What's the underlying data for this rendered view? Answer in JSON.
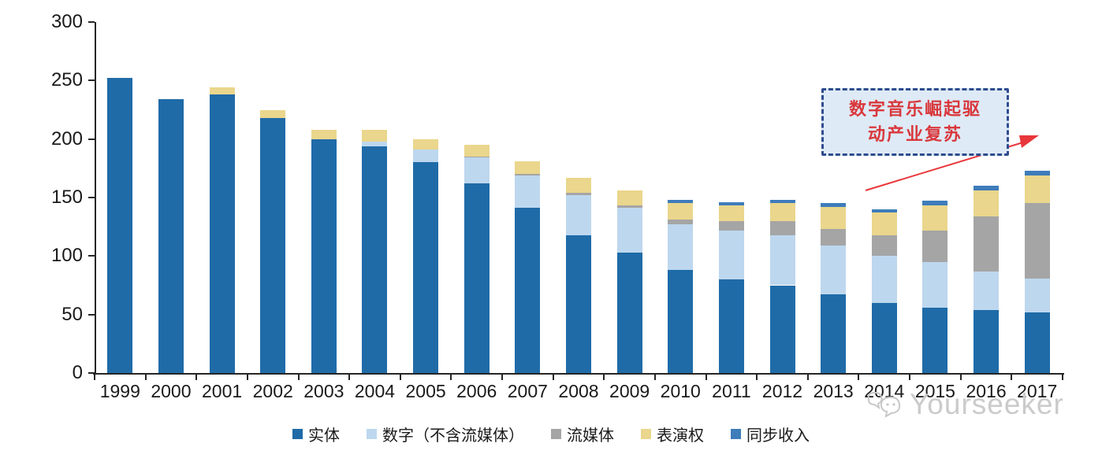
{
  "chart_data": {
    "type": "bar",
    "stacked": true,
    "title": "",
    "xlabel": "",
    "ylabel": "",
    "categories": [
      "1999",
      "2000",
      "2001",
      "2002",
      "2003",
      "2004",
      "2005",
      "2006",
      "2007",
      "2008",
      "2009",
      "2010",
      "2011",
      "2012",
      "2013",
      "2014",
      "2015",
      "2016",
      "2017"
    ],
    "series": [
      {
        "name": "实体",
        "color": "#1F6BA8",
        "values": [
          252,
          234,
          238,
          218,
          200,
          194,
          180,
          162,
          141,
          118,
          103,
          88,
          80,
          75,
          67,
          60,
          56,
          54,
          52
        ]
      },
      {
        "name": "数字（不含流媒体）",
        "color": "#BDD7EE",
        "values": [
          0,
          0,
          0,
          0,
          0,
          4,
          11,
          22,
          28,
          34,
          38,
          39,
          42,
          43,
          42,
          40,
          39,
          33,
          29
        ]
      },
      {
        "name": "流媒体",
        "color": "#A5A5A5",
        "values": [
          0,
          0,
          0,
          0,
          0,
          0,
          0,
          1,
          1,
          2,
          2,
          4,
          8,
          12,
          14,
          18,
          27,
          47,
          64
        ]
      },
      {
        "name": "表演权",
        "color": "#EAD68C",
        "values": [
          0,
          0,
          6,
          7,
          8,
          10,
          9,
          10,
          11,
          13,
          13,
          14,
          13,
          15,
          19,
          19,
          21,
          22,
          24
        ]
      },
      {
        "name": "同步收入",
        "color": "#3E7CBA",
        "values": [
          0,
          0,
          0,
          0,
          0,
          0,
          0,
          0,
          0,
          0,
          0,
          3,
          3,
          3,
          3,
          3,
          4,
          4,
          4
        ]
      }
    ],
    "ylim": [
      0,
      300
    ],
    "yticks": [
      0,
      50,
      100,
      150,
      200,
      250,
      300
    ],
    "grid": false,
    "legend_position": "bottom"
  },
  "annotation": {
    "line1": "数字音乐崛起驱",
    "line2": "动产业复苏"
  },
  "watermark": {
    "text": "Yourseeker"
  },
  "colors": {
    "axis": "#262626",
    "annotation_border": "#2E4D8E",
    "annotation_fill": "#DEEAF6",
    "annotation_text": "#D9383C",
    "arrow": "#E8373B",
    "watermark": "#C8C8C8"
  }
}
